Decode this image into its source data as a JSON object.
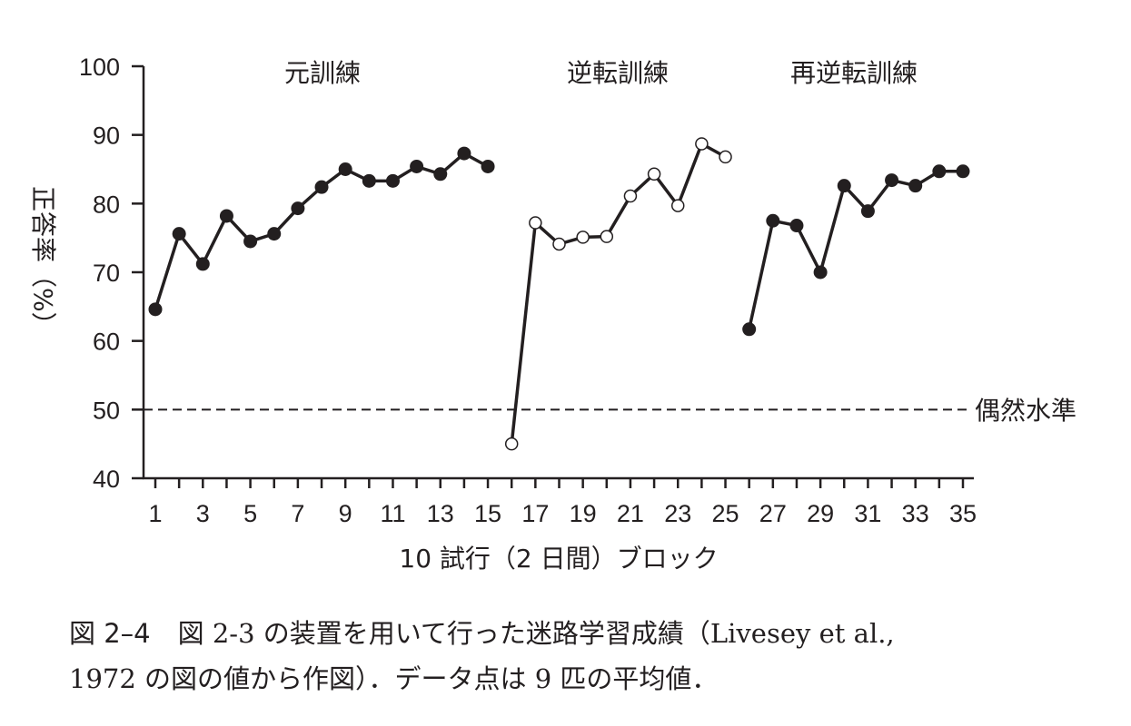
{
  "chart_data": {
    "type": "line",
    "xlabel": "10 試行（2 日間）ブロック",
    "ylabel": "正答率（%）",
    "ylim": [
      40,
      100
    ],
    "yticks": [
      40,
      50,
      60,
      70,
      80,
      90,
      100
    ],
    "xlim": [
      1,
      35
    ],
    "xtick_labels": [
      1,
      3,
      5,
      7,
      9,
      11,
      13,
      15,
      17,
      19,
      21,
      23,
      25,
      27,
      29,
      31,
      33,
      35
    ],
    "reference_line": {
      "y": 50,
      "label": "偶然水準",
      "style": "dashed"
    },
    "phases": [
      "元訓練",
      "逆転訓練",
      "再逆転訓練"
    ],
    "series": [
      {
        "name": "元訓練",
        "marker": "filled",
        "x": [
          1,
          2,
          3,
          4,
          5,
          6,
          7,
          8,
          9,
          10,
          11,
          12,
          13,
          14,
          15
        ],
        "values": [
          64.6,
          75.6,
          71.2,
          78.2,
          74.5,
          75.6,
          79.3,
          82.4,
          85.0,
          83.3,
          83.3,
          85.4,
          84.3,
          87.3,
          85.4
        ]
      },
      {
        "name": "逆転訓練",
        "marker": "open",
        "x": [
          16,
          17,
          18,
          19,
          20,
          21,
          22,
          23,
          24,
          25
        ],
        "values": [
          45.0,
          77.2,
          74.1,
          75.1,
          75.2,
          81.1,
          84.3,
          79.7,
          88.7,
          86.8
        ]
      },
      {
        "name": "再逆転訓練",
        "marker": "filled",
        "x": [
          26,
          27,
          28,
          29,
          30,
          31,
          32,
          33,
          34,
          35
        ],
        "values": [
          61.7,
          77.5,
          76.8,
          70.0,
          82.6,
          78.9,
          83.4,
          82.6,
          84.7,
          84.7
        ]
      }
    ],
    "color": "#231f20"
  },
  "caption": {
    "figure_number": "図 2–4",
    "line1": "図 2-3 の装置を用いて行った迷路学習成績（Livesey et al.,",
    "line2": "1972 の図の値から作図）．データ点は 9 匹の平均値．"
  }
}
